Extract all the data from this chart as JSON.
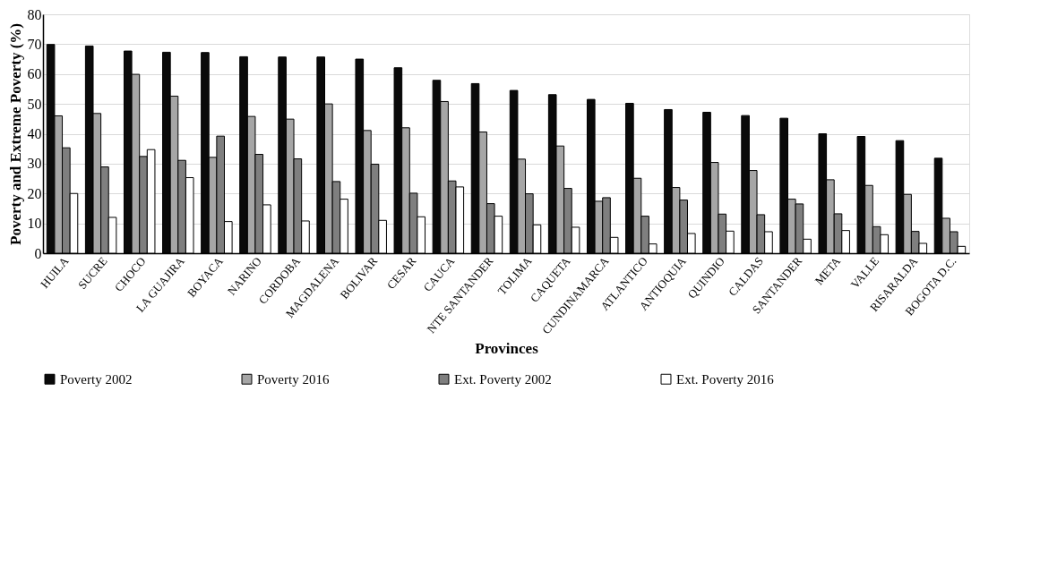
{
  "chart_data": {
    "type": "bar",
    "xlabel": "Provinces",
    "ylabel": "Poverty and Extreme Poverty (%)",
    "categories": [
      "HUILA",
      "SUCRE",
      "CHOCO",
      "LA GUAJIRA",
      "BOYACA",
      "NARINO",
      "CORDOBA",
      "MAGDALENA",
      "BOLIVAR",
      "CESAR",
      "CAUCA",
      "NTE SANTANDER",
      "TOLIMA",
      "CAQUETA",
      "CUNDINAMARCA",
      "ATLANTICO",
      "ANTIOQUIA",
      "QUINDIO",
      "CALDAS",
      "SANTANDER",
      "META",
      "VALLE",
      "RISARALDA",
      "BOGOTA D.C."
    ],
    "series": [
      {
        "name": "Poverty 2002",
        "color": "#0a0a0a",
        "values": [
          69.9,
          69.4,
          67.7,
          67.3,
          67.2,
          65.8,
          65.7,
          65.7,
          65.0,
          62.1,
          57.9,
          56.8,
          54.5,
          53.1,
          51.5,
          50.2,
          48.1,
          47.2,
          46.1,
          45.2,
          40.0,
          39.1,
          37.7,
          31.8
        ]
      },
      {
        "name": "Poverty 2016",
        "color": "#a6a6a6",
        "values": [
          46.0,
          46.8,
          59.9,
          52.6,
          32.1,
          45.8,
          44.9,
          50.0,
          41.1,
          42.0,
          50.8,
          40.6,
          31.5,
          35.9,
          17.4,
          25.1,
          22.0,
          30.4,
          27.7,
          18.1,
          24.6,
          22.7,
          19.7,
          11.7
        ]
      },
      {
        "name": "Ext. Poverty 2002",
        "color": "#7f7f7f",
        "values": [
          35.3,
          28.9,
          32.4,
          31.1,
          39.2,
          33.1,
          31.6,
          24.0,
          29.8,
          20.1,
          24.2,
          16.6,
          19.9,
          21.7,
          18.6,
          12.4,
          17.8,
          13.1,
          12.9,
          16.5,
          13.2,
          8.9,
          7.3,
          7.2
        ]
      },
      {
        "name": "Ext. Poverty 2016",
        "color": "#ffffff",
        "values": [
          20.0,
          12.0,
          34.7,
          25.3,
          10.6,
          16.2,
          10.8,
          18.1,
          11.0,
          12.2,
          22.2,
          12.4,
          9.5,
          8.7,
          5.3,
          3.1,
          6.6,
          7.4,
          7.2,
          4.7,
          7.6,
          6.2,
          3.3,
          2.3
        ]
      }
    ],
    "ylim": [
      0,
      80
    ],
    "yticks": [
      0,
      10,
      20,
      30,
      40,
      50,
      60,
      70,
      80
    ],
    "grid": "y",
    "legend": "bottom"
  }
}
